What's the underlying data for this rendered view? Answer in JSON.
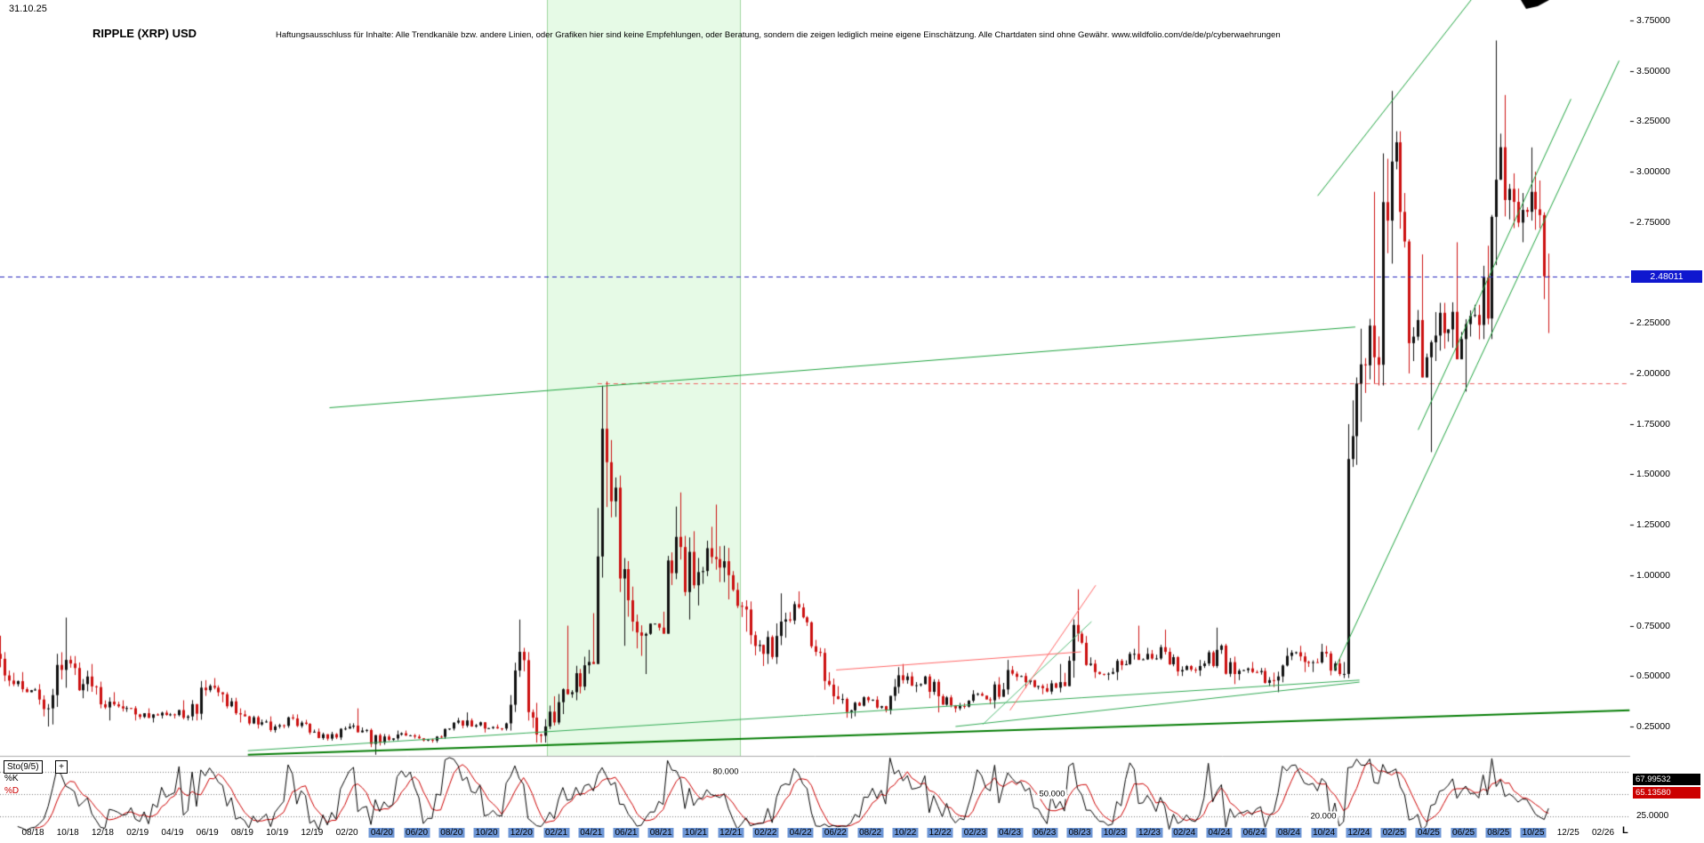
{
  "header": {
    "date_label": "31.10.25",
    "title": "RIPPLE (XRP) USD",
    "disclaimer": "Haftungsausschluss für Inhalte: Alle Trendkanäle bzw. andere Linien, oder Grafiken hier sind keine Empfehlungen, oder Beratung, sondern die zeigen lediglich meine eigene Einschätzung. Alle Chartdaten sind ohne Gewähr.  www.wildfolio.com/de/de/p/cyberwaehrungen"
  },
  "price_axis": {
    "labels": [
      "3.75000",
      "3.50000",
      "3.25000",
      "3.00000",
      "2.75000",
      "2.25000",
      "2.00000",
      "1.75000",
      "1.50000",
      "1.25000",
      "1.00000",
      "0.75000",
      "0.50000",
      "0.25000"
    ],
    "current_price": "2.48011",
    "current_price_value": 2.48011,
    "badge_bg": "#0f17cf",
    "badge_text_color": "#ffffff"
  },
  "x_axis": {
    "labels": [
      "08/18",
      "10/18",
      "12/18",
      "02/19",
      "04/19",
      "06/19",
      "08/19",
      "10/19",
      "12/19",
      "02/20",
      "04/20",
      "06/20",
      "08/20",
      "10/20",
      "12/20",
      "02/21",
      "04/21",
      "06/21",
      "08/21",
      "10/21",
      "12/21",
      "02/22",
      "04/22",
      "06/22",
      "08/22",
      "10/22",
      "12/22",
      "02/23",
      "04/23",
      "06/23",
      "08/23",
      "10/23",
      "12/23",
      "02/24",
      "04/24",
      "06/24",
      "08/24",
      "10/24",
      "12/24",
      "02/25",
      "04/25",
      "06/25",
      "08/25",
      "10/25",
      "12/25",
      "02/26"
    ],
    "highlight_range": [
      "04/20",
      "10/25"
    ],
    "highlight_color": "#6d96d6"
  },
  "indicator_panel": {
    "name": "Sto(9/5)",
    "add_button_label": "+",
    "k_label": "%K",
    "d_label": "%D",
    "k_value": "67.99532",
    "d_value": "65.13580",
    "k_color": "#000000",
    "d_color": "#cc0000",
    "k_badge_bg": "#000000",
    "d_badge_bg": "#cc0000",
    "right_axis_label": "25.0000",
    "levels": [
      {
        "value": 80,
        "label": "80.000"
      },
      {
        "value": 50,
        "label": "50.000"
      },
      {
        "value": 20,
        "label": "20.000"
      }
    ]
  },
  "misc": {
    "corner_mark": "L"
  },
  "chart_data": {
    "type": "candlestick",
    "title": "RIPPLE (XRP) USD",
    "timeframe": "weekly, rendered from monthly OHLC keyframes 05/2018 - 10/2025",
    "ylim": [
      0.09,
      3.85
    ],
    "grid": false,
    "up_color": "#111111",
    "down_color": "#cc1111",
    "current_price": 2.48011,
    "monthly_ohlc": [
      [
        "05/18",
        0.83,
        0.94,
        0.55,
        0.61
      ],
      [
        "06/18",
        0.61,
        0.7,
        0.45,
        0.46
      ],
      [
        "07/18",
        0.46,
        0.52,
        0.42,
        0.43
      ],
      [
        "08/18",
        0.43,
        0.46,
        0.25,
        0.34
      ],
      [
        "09/18",
        0.34,
        0.79,
        0.26,
        0.58
      ],
      [
        "10/18",
        0.58,
        0.6,
        0.39,
        0.46
      ],
      [
        "11/18",
        0.46,
        0.56,
        0.34,
        0.36
      ],
      [
        "12/18",
        0.36,
        0.42,
        0.28,
        0.35
      ],
      [
        "01/19",
        0.35,
        0.38,
        0.28,
        0.31
      ],
      [
        "02/19",
        0.31,
        0.34,
        0.27,
        0.31
      ],
      [
        "03/19",
        0.31,
        0.33,
        0.29,
        0.31
      ],
      [
        "04/19",
        0.31,
        0.38,
        0.28,
        0.3
      ],
      [
        "05/19",
        0.3,
        0.48,
        0.28,
        0.43
      ],
      [
        "06/19",
        0.43,
        0.49,
        0.37,
        0.41
      ],
      [
        "07/19",
        0.41,
        0.42,
        0.27,
        0.31
      ],
      [
        "08/19",
        0.31,
        0.33,
        0.24,
        0.26
      ],
      [
        "09/19",
        0.26,
        0.3,
        0.22,
        0.25
      ],
      [
        "10/19",
        0.25,
        0.31,
        0.24,
        0.29
      ],
      [
        "11/19",
        0.29,
        0.31,
        0.21,
        0.22
      ],
      [
        "12/19",
        0.22,
        0.24,
        0.18,
        0.19
      ],
      [
        "01/20",
        0.19,
        0.25,
        0.18,
        0.24
      ],
      [
        "02/20",
        0.24,
        0.34,
        0.22,
        0.23
      ],
      [
        "03/20",
        0.23,
        0.24,
        0.11,
        0.17
      ],
      [
        "04/20",
        0.17,
        0.23,
        0.16,
        0.21
      ],
      [
        "05/20",
        0.21,
        0.23,
        0.19,
        0.2
      ],
      [
        "06/20",
        0.2,
        0.21,
        0.17,
        0.18
      ],
      [
        "07/20",
        0.18,
        0.24,
        0.17,
        0.24
      ],
      [
        "08/20",
        0.24,
        0.32,
        0.23,
        0.28
      ],
      [
        "09/20",
        0.28,
        0.29,
        0.22,
        0.24
      ],
      [
        "10/20",
        0.24,
        0.26,
        0.23,
        0.24
      ],
      [
        "11/20",
        0.24,
        0.78,
        0.23,
        0.62
      ],
      [
        "12/20",
        0.62,
        0.64,
        0.17,
        0.21
      ],
      [
        "01/21",
        0.21,
        0.4,
        0.17,
        0.27
      ],
      [
        "02/21",
        0.27,
        0.75,
        0.26,
        0.42
      ],
      [
        "03/21",
        0.42,
        0.63,
        0.38,
        0.57
      ],
      [
        "04/21",
        0.57,
        1.96,
        0.56,
        1.56
      ],
      [
        "05/21",
        1.56,
        1.67,
        0.65,
        1.03
      ],
      [
        "06/21",
        1.03,
        1.07,
        0.6,
        0.7
      ],
      [
        "07/21",
        0.7,
        0.76,
        0.51,
        0.74
      ],
      [
        "08/21",
        0.74,
        1.34,
        0.71,
        1.19
      ],
      [
        "09/21",
        1.19,
        1.41,
        0.78,
        0.95
      ],
      [
        "10/21",
        0.95,
        1.24,
        0.85,
        1.09
      ],
      [
        "11/21",
        1.09,
        1.35,
        0.88,
        1.0
      ],
      [
        "12/21",
        1.0,
        1.02,
        0.72,
        0.83
      ],
      [
        "01/22",
        0.83,
        0.87,
        0.55,
        0.61
      ],
      [
        "02/22",
        0.61,
        0.91,
        0.56,
        0.77
      ],
      [
        "03/22",
        0.77,
        0.92,
        0.69,
        0.84
      ],
      [
        "04/22",
        0.84,
        0.86,
        0.6,
        0.62
      ],
      [
        "05/22",
        0.62,
        0.64,
        0.36,
        0.4
      ],
      [
        "06/22",
        0.4,
        0.45,
        0.29,
        0.33
      ],
      [
        "07/22",
        0.33,
        0.4,
        0.3,
        0.38
      ],
      [
        "08/22",
        0.38,
        0.4,
        0.32,
        0.33
      ],
      [
        "09/22",
        0.33,
        0.56,
        0.31,
        0.48
      ],
      [
        "10/22",
        0.48,
        0.52,
        0.42,
        0.46
      ],
      [
        "11/22",
        0.46,
        0.51,
        0.32,
        0.4
      ],
      [
        "12/22",
        0.4,
        0.41,
        0.32,
        0.34
      ],
      [
        "01/23",
        0.34,
        0.43,
        0.33,
        0.41
      ],
      [
        "02/23",
        0.41,
        0.42,
        0.36,
        0.38
      ],
      [
        "03/23",
        0.38,
        0.58,
        0.34,
        0.53
      ],
      [
        "04/23",
        0.53,
        0.55,
        0.44,
        0.47
      ],
      [
        "05/23",
        0.47,
        0.48,
        0.41,
        0.44
      ],
      [
        "06/23",
        0.44,
        0.56,
        0.41,
        0.47
      ],
      [
        "07/23",
        0.47,
        0.93,
        0.45,
        0.71
      ],
      [
        "08/23",
        0.71,
        0.72,
        0.49,
        0.52
      ],
      [
        "09/23",
        0.52,
        0.54,
        0.48,
        0.52
      ],
      [
        "10/23",
        0.52,
        0.62,
        0.48,
        0.61
      ],
      [
        "11/23",
        0.61,
        0.75,
        0.58,
        0.61
      ],
      [
        "12/23",
        0.61,
        0.73,
        0.58,
        0.62
      ],
      [
        "01/24",
        0.62,
        0.64,
        0.5,
        0.53
      ],
      [
        "02/24",
        0.53,
        0.58,
        0.5,
        0.55
      ],
      [
        "03/24",
        0.55,
        0.74,
        0.54,
        0.63
      ],
      [
        "04/24",
        0.63,
        0.66,
        0.46,
        0.51
      ],
      [
        "05/24",
        0.51,
        0.57,
        0.48,
        0.52
      ],
      [
        "06/24",
        0.52,
        0.54,
        0.45,
        0.48
      ],
      [
        "07/24",
        0.48,
        0.64,
        0.42,
        0.6
      ],
      [
        "08/24",
        0.6,
        0.65,
        0.52,
        0.57
      ],
      [
        "09/24",
        0.57,
        0.66,
        0.52,
        0.62
      ],
      [
        "10/24",
        0.62,
        0.65,
        0.5,
        0.51
      ],
      [
        "11/24",
        0.51,
        1.98,
        0.49,
        1.95
      ],
      [
        "12/24",
        1.95,
        2.9,
        1.76,
        2.08
      ],
      [
        "01/25",
        2.08,
        3.4,
        1.94,
        3.05
      ],
      [
        "02/25",
        3.05,
        3.2,
        2.0,
        2.15
      ],
      [
        "03/25",
        2.15,
        2.59,
        1.98,
        2.08
      ],
      [
        "04/25",
        2.08,
        2.35,
        1.61,
        2.2
      ],
      [
        "05/25",
        2.2,
        2.65,
        2.07,
        2.17
      ],
      [
        "06/25",
        2.17,
        2.34,
        1.91,
        2.24
      ],
      [
        "07/25",
        2.24,
        3.65,
        2.17,
        2.96
      ],
      [
        "08/25",
        2.96,
        3.38,
        2.72,
        2.85
      ],
      [
        "09/25",
        2.85,
        3.12,
        2.65,
        2.9
      ],
      [
        "10/25",
        2.9,
        3.0,
        2.2,
        2.48
      ]
    ],
    "overlays": {
      "vband": {
        "from": 2021.04,
        "to": 2021.96,
        "fill": "rgba(200,245,200,0.45)",
        "border": "#9fd69f"
      },
      "horizontal_lines": [
        {
          "price": 1.95,
          "color": "#ee6666",
          "dash": [
            5,
            4
          ],
          "from": 2021.28,
          "to": 2026.2,
          "role": "resistance"
        },
        {
          "price": 2.48011,
          "color": "#2222bb",
          "dash": [
            5,
            4
          ],
          "from": null,
          "to": null,
          "role": "current-price"
        }
      ],
      "trendlines": [
        {
          "x1": 2020.0,
          "p1": 1.83,
          "x2": 2024.9,
          "p2": 2.23,
          "color": "#1fa33f",
          "width": 1
        },
        {
          "x1": 2024.72,
          "p1": 2.88,
          "x2": 2025.49,
          "p2": 3.9,
          "color": "#1fa33f",
          "width": 1
        },
        {
          "x1": 2024.8,
          "p1": 0.53,
          "x2": 2026.16,
          "p2": 3.55,
          "color": "#1fa33f",
          "width": 1
        },
        {
          "x1": 2025.2,
          "p1": 1.72,
          "x2": 2025.93,
          "p2": 3.36,
          "color": "#1fa33f",
          "width": 1
        },
        {
          "x1": 2019.61,
          "p1": 0.11,
          "x2": 2026.21,
          "p2": 0.33,
          "color": "#067d06",
          "width": 2
        },
        {
          "x1": 2019.61,
          "p1": 0.13,
          "x2": 2024.92,
          "p2": 0.48,
          "color": "#33aa55",
          "width": 1
        },
        {
          "x1": 2022.99,
          "p1": 0.25,
          "x2": 2024.92,
          "p2": 0.47,
          "color": "#33aa55",
          "width": 1
        },
        {
          "x1": 2023.12,
          "p1": 0.26,
          "x2": 2023.64,
          "p2": 0.77,
          "color": "#55bb77",
          "width": 1
        },
        {
          "x1": 2022.42,
          "p1": 0.53,
          "x2": 2023.59,
          "p2": 0.62,
          "color": "#ff6666",
          "width": 1
        },
        {
          "x1": 2023.25,
          "p1": 0.33,
          "x2": 2023.66,
          "p2": 0.95,
          "color": "#ff6666",
          "width": 1
        }
      ]
    },
    "indicator": {
      "name": "Sto(9/5)",
      "k_period": 9,
      "d_period": 5,
      "k_last": 67.99532,
      "d_last": 65.1358,
      "levels": [
        80,
        50,
        20
      ]
    }
  }
}
